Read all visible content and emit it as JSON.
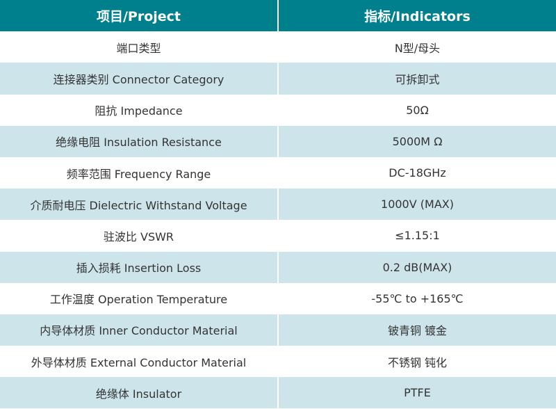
{
  "colors": {
    "header_bg": "#00808c",
    "alt_row_bg": "#cde5ea",
    "text": "#333333"
  },
  "header": {
    "project": "项目/Project",
    "indicators": "指标/Indicators"
  },
  "rows": [
    {
      "project": "端口类型",
      "indicator": "N型/母头"
    },
    {
      "project": "连接器类别 Connector Category",
      "indicator": "可拆卸式"
    },
    {
      "project": "阻抗 Impedance",
      "indicator": "50Ω"
    },
    {
      "project": "绝缘电阻 Insulation Resistance",
      "indicator": "5000M Ω"
    },
    {
      "project": "频率范围 Frequency Range",
      "indicator": "DC-18GHz"
    },
    {
      "project": "介质耐电压 Dielectric Withstand Voltage",
      "indicator": "1000V (MAX)"
    },
    {
      "project": "驻波比 VSWR",
      "indicator": "≤1.15:1"
    },
    {
      "project": "插入损耗 Insertion Loss",
      "indicator": "0.2 dB(MAX)"
    },
    {
      "project": "工作温度 Operation Temperature",
      "indicator": "-55℃ to +165℃"
    },
    {
      "project": "内导体材质 Inner Conductor Material",
      "indicator": "铍青铜 镀金"
    },
    {
      "project": "外导体材质 External Conductor Material",
      "indicator": "不锈钢 钝化"
    },
    {
      "project": "绝缘体 Insulator",
      "indicator": "PTFE"
    }
  ]
}
